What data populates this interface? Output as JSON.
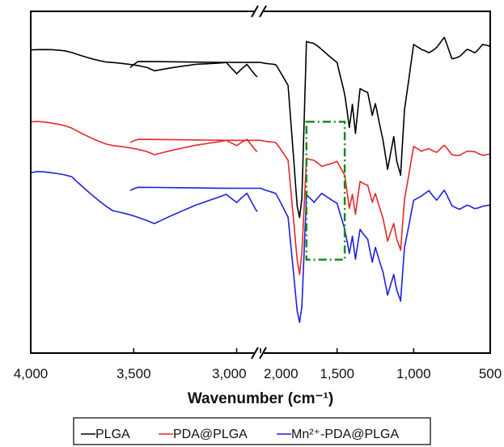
{
  "chart_data": {
    "type": "line",
    "xlabel": "Wavenumber (cm⁻¹)",
    "x_axis_reversed": true,
    "x_axis_break": [
      2900,
      2000
    ],
    "xlim": [
      4000,
      500
    ],
    "y_visible": false,
    "grid": false,
    "legend_placement": "bottom",
    "x_ticks": [
      {
        "value": 4000,
        "label": "4,000"
      },
      {
        "value": 3500,
        "label": "3,500"
      },
      {
        "value": 3000,
        "label": "3,000"
      },
      {
        "value": 2000,
        "label": "2,000"
      },
      {
        "value": 1500,
        "label": "1,500"
      },
      {
        "value": 1000,
        "label": "1,000"
      },
      {
        "value": 500,
        "label": "500"
      }
    ],
    "series": [
      {
        "name": "PLGA",
        "color": "#000000",
        "x": [
          4000,
          3800,
          3600,
          3400,
          3200,
          3050,
          3000,
          2950,
          2900,
          2850,
          2800,
          2000,
          1900,
          1820,
          1760,
          1745,
          1730,
          1700,
          1650,
          1600,
          1500,
          1450,
          1420,
          1400,
          1380,
          1350,
          1300,
          1270,
          1250,
          1200,
          1170,
          1130,
          1110,
          1085,
          1060,
          1000,
          950,
          900,
          850,
          800,
          750,
          700,
          650,
          600,
          550,
          500
        ],
        "y": [
          0.92,
          0.91,
          0.88,
          0.85,
          0.87,
          0.88,
          0.84,
          0.87,
          0.83,
          0.86,
          0.88,
          0.88,
          0.87,
          0.8,
          0.4,
          0.36,
          0.42,
          0.95,
          0.94,
          0.92,
          0.88,
          0.77,
          0.66,
          0.74,
          0.64,
          0.79,
          0.78,
          0.7,
          0.74,
          0.62,
          0.52,
          0.63,
          0.55,
          0.5,
          0.72,
          0.94,
          0.92,
          0.91,
          0.93,
          0.96,
          0.89,
          0.9,
          0.92,
          0.91,
          0.94,
          0.93
        ]
      },
      {
        "name": "PDA@PLGA",
        "color": "#e8262a",
        "x": [
          4000,
          3800,
          3600,
          3400,
          3200,
          3050,
          3000,
          2950,
          2900,
          2850,
          2800,
          2000,
          1900,
          1820,
          1760,
          1745,
          1730,
          1700,
          1650,
          1600,
          1500,
          1450,
          1420,
          1400,
          1380,
          1350,
          1300,
          1270,
          1250,
          1200,
          1170,
          1130,
          1110,
          1085,
          1060,
          1000,
          950,
          900,
          850,
          800,
          750,
          700,
          650,
          600,
          550,
          500
        ],
        "y": [
          0.68,
          0.66,
          0.6,
          0.57,
          0.6,
          0.62,
          0.6,
          0.62,
          0.58,
          0.61,
          0.62,
          0.62,
          0.61,
          0.55,
          0.22,
          0.17,
          0.24,
          0.56,
          0.55,
          0.53,
          0.55,
          0.5,
          0.39,
          0.44,
          0.37,
          0.48,
          0.47,
          0.41,
          0.44,
          0.36,
          0.28,
          0.34,
          0.29,
          0.25,
          0.42,
          0.6,
          0.58,
          0.59,
          0.58,
          0.6,
          0.57,
          0.57,
          0.58,
          0.58,
          0.57,
          0.57
        ]
      },
      {
        "name": "Mn²⁺-PDA@PLGA",
        "color": "#1f1fe0",
        "x": [
          4000,
          3800,
          3600,
          3400,
          3200,
          3050,
          3000,
          2950,
          2900,
          2850,
          2800,
          2000,
          1900,
          1820,
          1760,
          1745,
          1730,
          1700,
          1650,
          1600,
          1500,
          1450,
          1420,
          1400,
          1380,
          1350,
          1300,
          1270,
          1250,
          1200,
          1170,
          1130,
          1110,
          1085,
          1060,
          1000,
          950,
          900,
          850,
          800,
          750,
          700,
          650,
          600,
          550,
          500
        ],
        "y": [
          0.51,
          0.5,
          0.38,
          0.34,
          0.4,
          0.44,
          0.41,
          0.44,
          0.38,
          0.45,
          0.46,
          0.46,
          0.44,
          0.36,
          0.05,
          0.01,
          0.06,
          0.44,
          0.41,
          0.44,
          0.41,
          0.32,
          0.24,
          0.3,
          0.22,
          0.32,
          0.29,
          0.21,
          0.26,
          0.18,
          0.1,
          0.17,
          0.12,
          0.08,
          0.26,
          0.42,
          0.43,
          0.45,
          0.42,
          0.45,
          0.4,
          0.39,
          0.4,
          0.39,
          0.4,
          0.4
        ]
      }
    ],
    "highlight_box": {
      "x_from": 1700,
      "x_to": 1450,
      "y_from": 0.22,
      "y_to": 0.68,
      "color": "#1a8a1a",
      "style": "dash-dot"
    }
  },
  "legend": {
    "items": [
      {
        "label": "PLGA",
        "color": "#000000"
      },
      {
        "label": "PDA@PLGA",
        "color": "#e8262a"
      },
      {
        "label": "Mn²⁺-PDA@PLGA",
        "color": "#1f1fe0"
      }
    ]
  }
}
